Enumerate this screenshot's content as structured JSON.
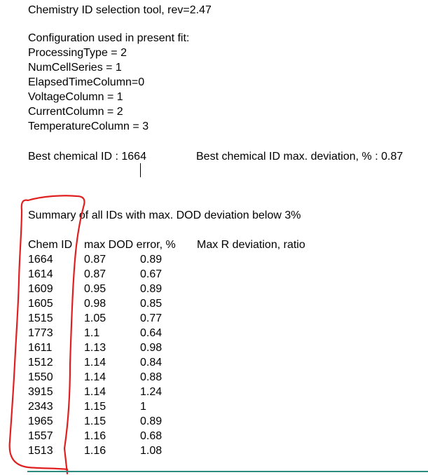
{
  "header": {
    "title": "Chemistry ID selection tool, rev=2.47"
  },
  "config": {
    "heading": "Configuration used in present fit:",
    "lines": [
      "ProcessingType = 2",
      "NumCellSeries = 1",
      "ElapsedTimeColumn=0",
      "VoltageColumn = 1",
      "CurrentColumn = 2",
      "TemperatureColumn = 3"
    ]
  },
  "best": {
    "id_label": "Best chemical ID : 1664",
    "deviation_label": "Best chemical ID max. deviation, % : 0.87"
  },
  "summary": {
    "heading": "Summary of all IDs with max. DOD deviation below 3%",
    "columns": [
      "Chem ID",
      "max DOD error, %",
      "Max R deviation, ratio"
    ],
    "rows": [
      [
        "1664",
        "0.87",
        "0.89"
      ],
      [
        "1614",
        "0.87",
        "0.67"
      ],
      [
        "1609",
        "0.95",
        "0.89"
      ],
      [
        "1605",
        "0.98",
        "0.85"
      ],
      [
        "1515",
        "1.05",
        "0.77"
      ],
      [
        "1773",
        "1.1",
        "0.64"
      ],
      [
        "1611",
        "1.13",
        "0.98"
      ],
      [
        "1512",
        "1.14",
        "0.84"
      ],
      [
        "1550",
        "1.14",
        "0.88"
      ],
      [
        "3915",
        "1.14",
        "1.24"
      ],
      [
        "2343",
        "1.15",
        "1"
      ],
      [
        "1965",
        "1.15",
        "0.89"
      ],
      [
        "1557",
        "1.16",
        "0.68"
      ],
      [
        "1513",
        "1.16",
        "1.08"
      ]
    ]
  },
  "colors": {
    "text": "#000000",
    "annotation": "#e02020",
    "bottom_rule": "#2b8b7f"
  }
}
